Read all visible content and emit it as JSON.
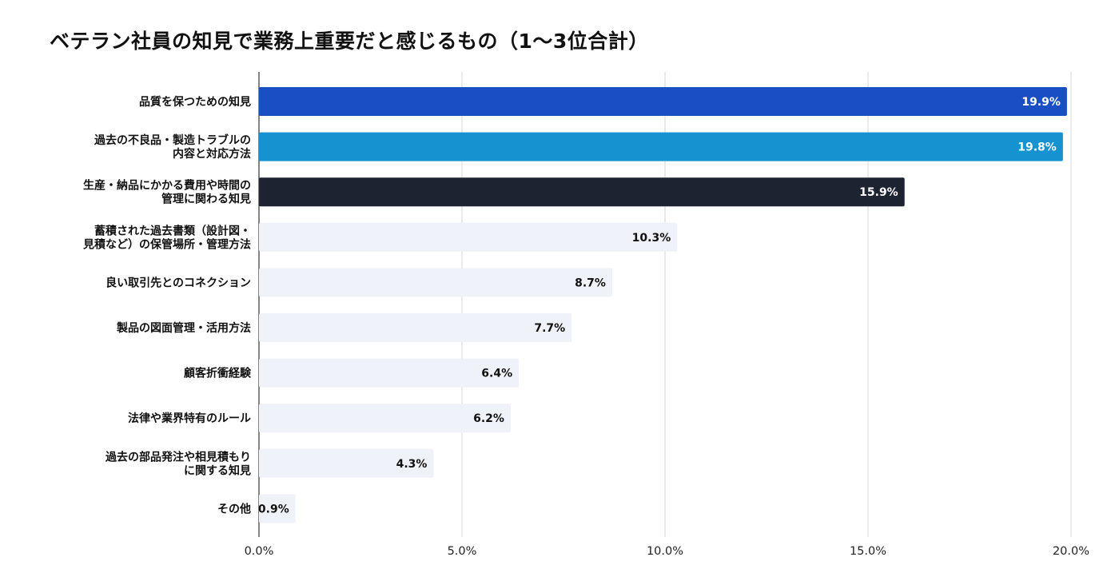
{
  "chart_data": {
    "type": "bar",
    "orientation": "horizontal",
    "title": "ベテラン社員の知見で業務上重要だと感じるもの（1〜3位合計）",
    "categories": [
      [
        "品質を保つための知見"
      ],
      [
        "過去の不良品・製造トラブルの",
        "内容と対応方法"
      ],
      [
        "生産・納品にかかる費用や時間の",
        "管理に関わる知見"
      ],
      [
        "蓄積された過去書類（設計図・",
        "見積など）の保管場所・管理方法"
      ],
      [
        "良い取引先とのコネクション"
      ],
      [
        "製品の図面管理・活用方法"
      ],
      [
        "顧客折衝経験"
      ],
      [
        "法律や業界特有のルール"
      ],
      [
        "過去の部品発注や相見積もり",
        "に関する知見"
      ],
      [
        "その他"
      ]
    ],
    "values": [
      19.9,
      19.8,
      15.9,
      10.3,
      8.7,
      7.7,
      6.4,
      6.2,
      4.3,
      0.9
    ],
    "value_labels": [
      "19.9%",
      "19.8%",
      "15.9%",
      "10.3%",
      "8.7%",
      "7.7%",
      "6.4%",
      "6.2%",
      "4.3%",
      "0.9%"
    ],
    "bar_colors": [
      "#1a4fc4",
      "#1592cf",
      "#1e2331",
      "#eff2f8",
      "#eff2f8",
      "#eff2f8",
      "#eff2f8",
      "#eff2f8",
      "#eff2f8",
      "#eff2f8"
    ],
    "value_label_colors": [
      "#ffffff",
      "#ffffff",
      "#ffffff",
      "#111111",
      "#111111",
      "#111111",
      "#111111",
      "#111111",
      "#111111",
      "#111111"
    ],
    "xlim": [
      0,
      20
    ],
    "xticks": [
      0,
      5,
      10,
      15,
      20
    ],
    "xtick_labels": [
      "0.0%",
      "5.0%",
      "10.0%",
      "15.0%",
      "20.0%"
    ],
    "grid": "vertical",
    "legend": "none",
    "xlabel": "",
    "ylabel": ""
  }
}
